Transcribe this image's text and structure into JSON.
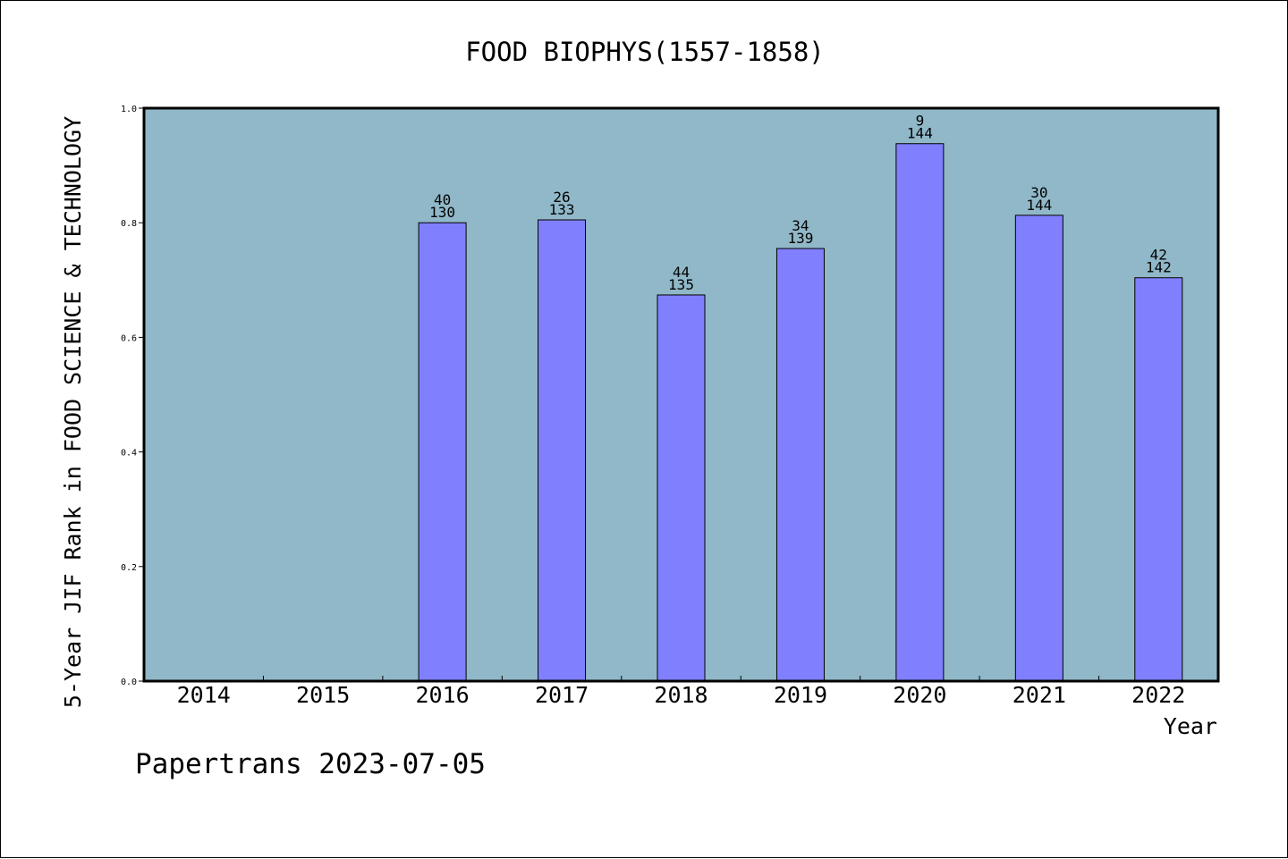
{
  "chart_data": {
    "type": "bar",
    "title": "FOOD BIOPHYS(1557-1858)",
    "xlabel": "Year",
    "ylabel": "5-Year JIF Rank in FOOD SCIENCE & TECHNOLOGY",
    "categories": [
      "2014",
      "2015",
      "2016",
      "2017",
      "2018",
      "2019",
      "2020",
      "2021",
      "2022"
    ],
    "values": [
      null,
      null,
      0.8,
      0.805,
      0.674,
      0.755,
      0.938,
      0.813,
      0.704
    ],
    "bar_labels_top": [
      "",
      "",
      "40",
      "26",
      "44",
      "34",
      "9",
      "30",
      "42"
    ],
    "bar_labels_bottom": [
      "",
      "",
      "130",
      "133",
      "135",
      "139",
      "144",
      "144",
      "142"
    ],
    "ylim": [
      0,
      1.0
    ],
    "yticks": [
      "0.0",
      "0.2",
      "0.4",
      "0.6",
      "0.8",
      "1.0"
    ],
    "grid": false,
    "colors": {
      "plot_background": "#90B8C8",
      "bar_fill": "#8080FF",
      "bar_edge": "#000000"
    }
  },
  "footer": {
    "credit": "Papertrans 2023-07-05"
  }
}
